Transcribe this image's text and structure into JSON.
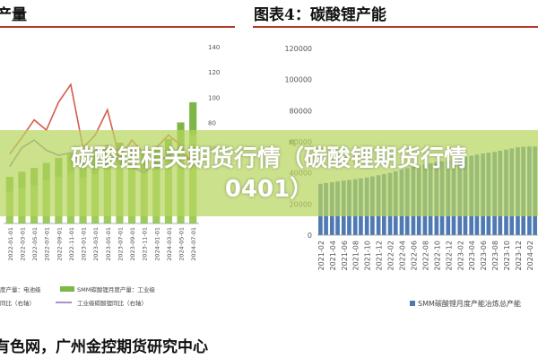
{
  "page": {
    "left_title": "产量",
    "right_title": "图表4：碳酸锂产能",
    "banner": "碳酸锂相关期货行情（碳酸锂期货行情0401）",
    "footer": "有色网，广州金控期货研究中心"
  },
  "colors": {
    "accent_rule": "#b23a2a",
    "green_bar": "#9ccc5a",
    "blue_bar": "#4e79b3",
    "red_line": "#d45d4a",
    "purple_line": "#8a6fb3",
    "banner_overlay": "#b7d660"
  },
  "chart_data": [
    {
      "type": "bar",
      "title": "",
      "categories": [
        "2022-01",
        "2022-03",
        "2022-05",
        "2022-07",
        "2022-09",
        "2022-11",
        "2023-01",
        "2023-03",
        "2023-05",
        "2023-07",
        "2023-09",
        "2023-11",
        "2024-01",
        "2024-03",
        "2024-05",
        "2024-07"
      ],
      "x_tick_labels": [
        "2022-01-01",
        "2022-03-01",
        "2022-05-01",
        "2022-07-01",
        "2022-09-01",
        "2022-11-01",
        "2023-01-01",
        "2023-03-01",
        "2023-05-01",
        "2023-07-01",
        "2023-09-01",
        "2023-11-01",
        "2024-01-01",
        "2024-03-01",
        "2024-05-01",
        "2024-07-01"
      ],
      "series": [
        {
          "name": "度产量：电池级",
          "kind": "bar",
          "axis": "right",
          "values": [
            25,
            28,
            30,
            34,
            37,
            40,
            36,
            39,
            43,
            46,
            44,
            40,
            42,
            48,
            58,
            70
          ]
        },
        {
          "name": "SMM碳酸锂月度产量：工业级",
          "kind": "bar",
          "axis": "right",
          "values": [
            12,
            13,
            14,
            14,
            15,
            16,
            14,
            15,
            17,
            18,
            17,
            16,
            17,
            19,
            22,
            26
          ]
        },
        {
          "name": "同比（右轴）",
          "kind": "line",
          "axis": "right",
          "values": [
            55,
            68,
            82,
            74,
            96,
            110,
            60,
            70,
            90,
            52,
            66,
            55,
            60,
            70,
            62,
            46
          ]
        },
        {
          "name": "工业级碳酸锂同比（右轴）",
          "kind": "line",
          "axis": "right",
          "values": [
            45,
            60,
            66,
            58,
            54,
            56,
            48,
            58,
            62,
            48,
            45,
            40,
            48,
            54,
            58,
            45
          ]
        }
      ],
      "right_axis_ticks": [
        "140",
        "120",
        "100",
        "80",
        "60"
      ],
      "ylim_right": [
        0,
        140
      ],
      "legend": [
        "度产量：电池级",
        "SMM碳酸锂月度产量：工业级",
        "同比（右轴）",
        "工业级碳酸锂同比（右轴）"
      ],
      "legend_position": "bottom",
      "grid": false
    },
    {
      "type": "bar",
      "title": "",
      "categories": [
        "2021-02",
        "2021-04",
        "2021-06",
        "2021-08",
        "2021-10",
        "2021-12",
        "2022-02",
        "2022-04",
        "2022-06",
        "2022-08",
        "2022-10",
        "2022-12",
        "2023-02",
        "2023-04",
        "2023-06",
        "2023-08",
        "2023-10",
        "2023-12",
        "2024-02"
      ],
      "x_tick_labels": [
        "2021-02",
        "2021-04",
        "2021-06",
        "2021-08",
        "2021-10",
        "2021-12",
        "2022-02",
        "2022-04",
        "2022-06",
        "2022-08",
        "2022-10",
        "2022-12",
        "2023-02",
        "2023-04",
        "2023-06",
        "2023-08",
        "2023-10",
        "2023-12",
        "2024-02"
      ],
      "series": [
        {
          "name": "SMM碳酸锂月度产能冶炼总产能",
          "values": [
            33000,
            34000,
            35000,
            36000,
            37000,
            38500,
            40000,
            42000,
            44000,
            45500,
            47000,
            48000,
            49500,
            51000,
            52500,
            53500,
            55000,
            56500,
            57000
          ]
        }
      ],
      "y_axis_ticks": [
        "120000",
        "100000",
        "80000",
        "60000",
        "40000",
        "20000",
        "0"
      ],
      "ylim": [
        0,
        120000
      ],
      "y_unit": "吨",
      "legend": [
        "SMM碳酸锂月度产能冶炼总产能"
      ],
      "legend_position": "bottom",
      "grid": false
    }
  ]
}
